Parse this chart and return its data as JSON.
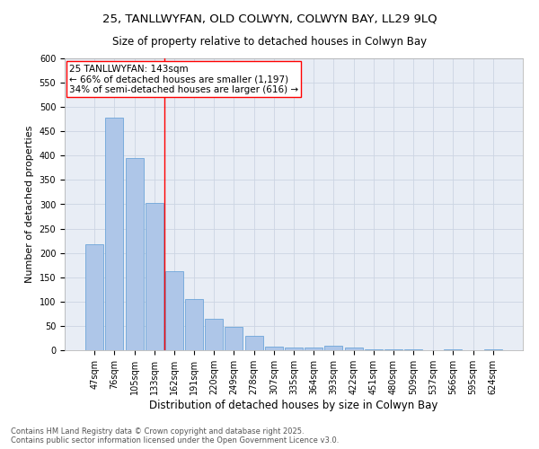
{
  "title": "25, TANLLWYFAN, OLD COLWYN, COLWYN BAY, LL29 9LQ",
  "subtitle": "Size of property relative to detached houses in Colwyn Bay",
  "xlabel": "Distribution of detached houses by size in Colwyn Bay",
  "ylabel": "Number of detached properties",
  "categories": [
    "47sqm",
    "76sqm",
    "105sqm",
    "133sqm",
    "162sqm",
    "191sqm",
    "220sqm",
    "249sqm",
    "278sqm",
    "307sqm",
    "335sqm",
    "364sqm",
    "393sqm",
    "422sqm",
    "451sqm",
    "480sqm",
    "509sqm",
    "537sqm",
    "566sqm",
    "595sqm",
    "624sqm"
  ],
  "values": [
    218,
    478,
    395,
    303,
    163,
    105,
    64,
    48,
    30,
    7,
    6,
    6,
    9,
    5,
    2,
    1,
    1,
    0,
    1,
    0,
    2
  ],
  "bar_color": "#aec6e8",
  "bar_edge_color": "#5b9bd5",
  "vline_index": 3.5,
  "vline_color": "red",
  "annotation_text": "25 TANLLWYFAN: 143sqm\n← 66% of detached houses are smaller (1,197)\n34% of semi-detached houses are larger (616) →",
  "ylim": [
    0,
    600
  ],
  "yticks": [
    0,
    50,
    100,
    150,
    200,
    250,
    300,
    350,
    400,
    450,
    500,
    550,
    600
  ],
  "grid_color": "#ccd5e3",
  "background_color": "#e8edf5",
  "footer": "Contains HM Land Registry data © Crown copyright and database right 2025.\nContains public sector information licensed under the Open Government Licence v3.0.",
  "title_fontsize": 9.5,
  "subtitle_fontsize": 8.5,
  "xlabel_fontsize": 8.5,
  "ylabel_fontsize": 8,
  "tick_fontsize": 7,
  "annotation_fontsize": 7.5,
  "footer_fontsize": 6
}
